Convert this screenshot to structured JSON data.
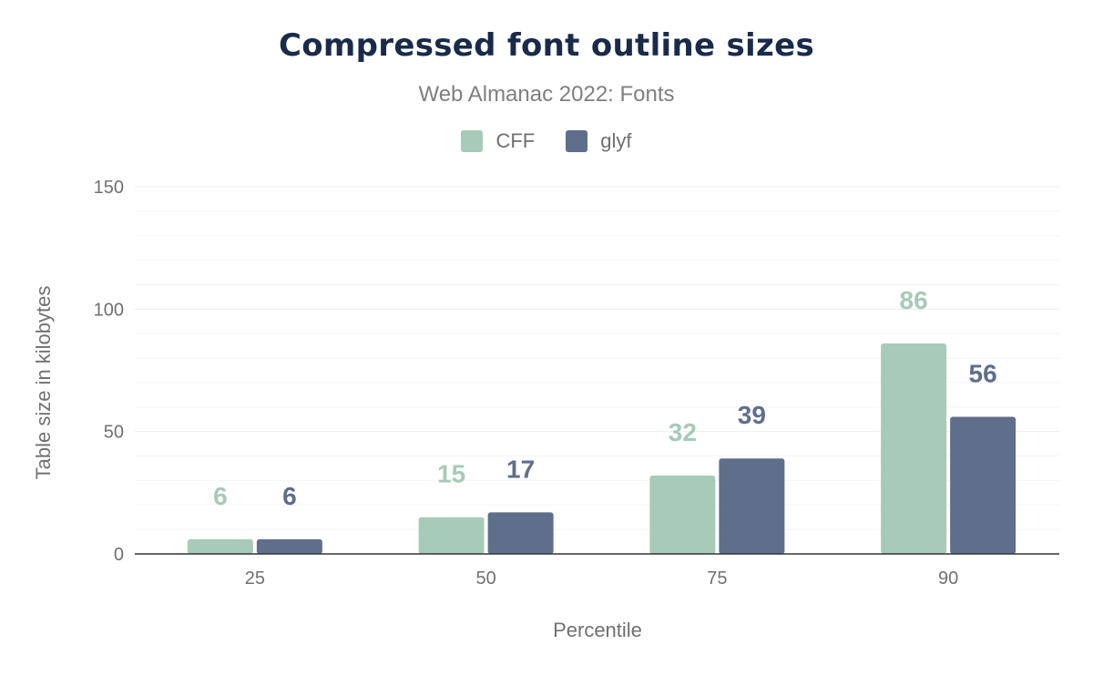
{
  "chart_data": {
    "type": "bar",
    "title": "Compressed font outline sizes",
    "subtitle": "Web Almanac 2022: Fonts",
    "xlabel": "Percentile",
    "ylabel": "Table size in kilobytes",
    "categories": [
      "25",
      "50",
      "75",
      "90"
    ],
    "series": [
      {
        "name": "CFF",
        "color": "#a8cab9",
        "values": [
          6,
          15,
          32,
          86
        ]
      },
      {
        "name": "glyf",
        "color": "#5f6e8b",
        "values": [
          6,
          17,
          39,
          56
        ]
      }
    ],
    "ylim": [
      0,
      150
    ],
    "yticks": [
      "0",
      "50",
      "100",
      "150"
    ],
    "grid": true,
    "legend": "top"
  }
}
